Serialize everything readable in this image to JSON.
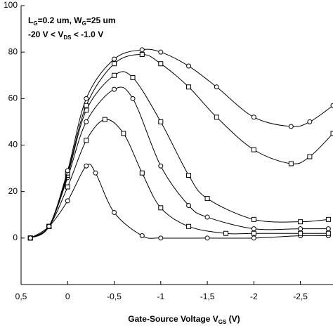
{
  "chart_data": {
    "type": "line",
    "annotations": [
      [
        "L",
        "G",
        "=0.2 um, W",
        "G",
        "=25 um"
      ],
      [
        "-20 V < V",
        "DS",
        " < -1.0 V"
      ]
    ],
    "x_label": [
      "Gate-Source Voltage V",
      "GS",
      " (V)"
    ],
    "xlim": [
      0.5,
      -2.85
    ],
    "ylim": [
      -20,
      100
    ],
    "xticks": [
      {
        "value": 0.5,
        "label": "0,5"
      },
      0,
      {
        "value": -0.5,
        "label": "-0,5"
      },
      -1,
      {
        "value": -1.5,
        "label": "-1,5"
      },
      -2,
      {
        "value": -2.5,
        "label": "-2,5"
      }
    ],
    "yticks": [
      0,
      20,
      40,
      60,
      80,
      100
    ],
    "series": [
      {
        "color": "#000000",
        "marker": "circle",
        "x": [
          0.4,
          0.2,
          0,
          -0.2,
          -0.3,
          -0.5,
          -0.8,
          -1.0,
          -1.5,
          -2.0,
          -2.5,
          -2.8
        ],
        "values": [
          0,
          5,
          16,
          31,
          28,
          11,
          1,
          0,
          0,
          0,
          1,
          1
        ]
      },
      {
        "color": "#000000",
        "marker": "square",
        "x": [
          0.4,
          0.2,
          0,
          -0.2,
          -0.4,
          -0.6,
          -0.8,
          -1.0,
          -1.3,
          -1.7,
          -2.0,
          -2.5,
          -2.8
        ],
        "values": [
          0,
          5,
          22,
          42,
          51,
          45,
          28,
          13,
          5,
          2,
          2,
          2,
          2
        ]
      },
      {
        "color": "#000000",
        "marker": "circle",
        "x": [
          0.4,
          0.2,
          0,
          -0.2,
          -0.5,
          -0.7,
          -1.0,
          -1.3,
          -1.5,
          -2.0,
          -2.5,
          -2.8
        ],
        "values": [
          0,
          5,
          26,
          50,
          64,
          60,
          31,
          14,
          9,
          4,
          4,
          4
        ]
      },
      {
        "color": "#000000",
        "marker": "square",
        "x": [
          0.4,
          0.2,
          0,
          -0.2,
          -0.5,
          -0.7,
          -1.0,
          -1.3,
          -1.5,
          -2.0,
          -2.5,
          -2.8
        ],
        "values": [
          0,
          5,
          27,
          55,
          70,
          69,
          50,
          27,
          17,
          8,
          7,
          8
        ]
      },
      {
        "color": "#000000",
        "marker": "square",
        "x": [
          0.4,
          0.2,
          0,
          -0.2,
          -0.5,
          -0.8,
          -1.0,
          -1.3,
          -1.6,
          -2.0,
          -2.4,
          -2.6,
          -2.85
        ],
        "values": [
          0,
          5,
          28,
          57,
          75,
          79,
          75,
          65,
          52,
          38,
          32,
          35,
          45
        ]
      },
      {
        "color": "#000000",
        "marker": "circle",
        "x": [
          0.4,
          0.2,
          0,
          -0.2,
          -0.5,
          -0.8,
          -1.0,
          -1.3,
          -1.6,
          -2.0,
          -2.4,
          -2.6,
          -2.85
        ],
        "values": [
          0,
          5,
          29,
          60,
          77,
          81,
          80,
          74,
          65,
          52,
          48,
          50,
          57
        ]
      }
    ]
  }
}
